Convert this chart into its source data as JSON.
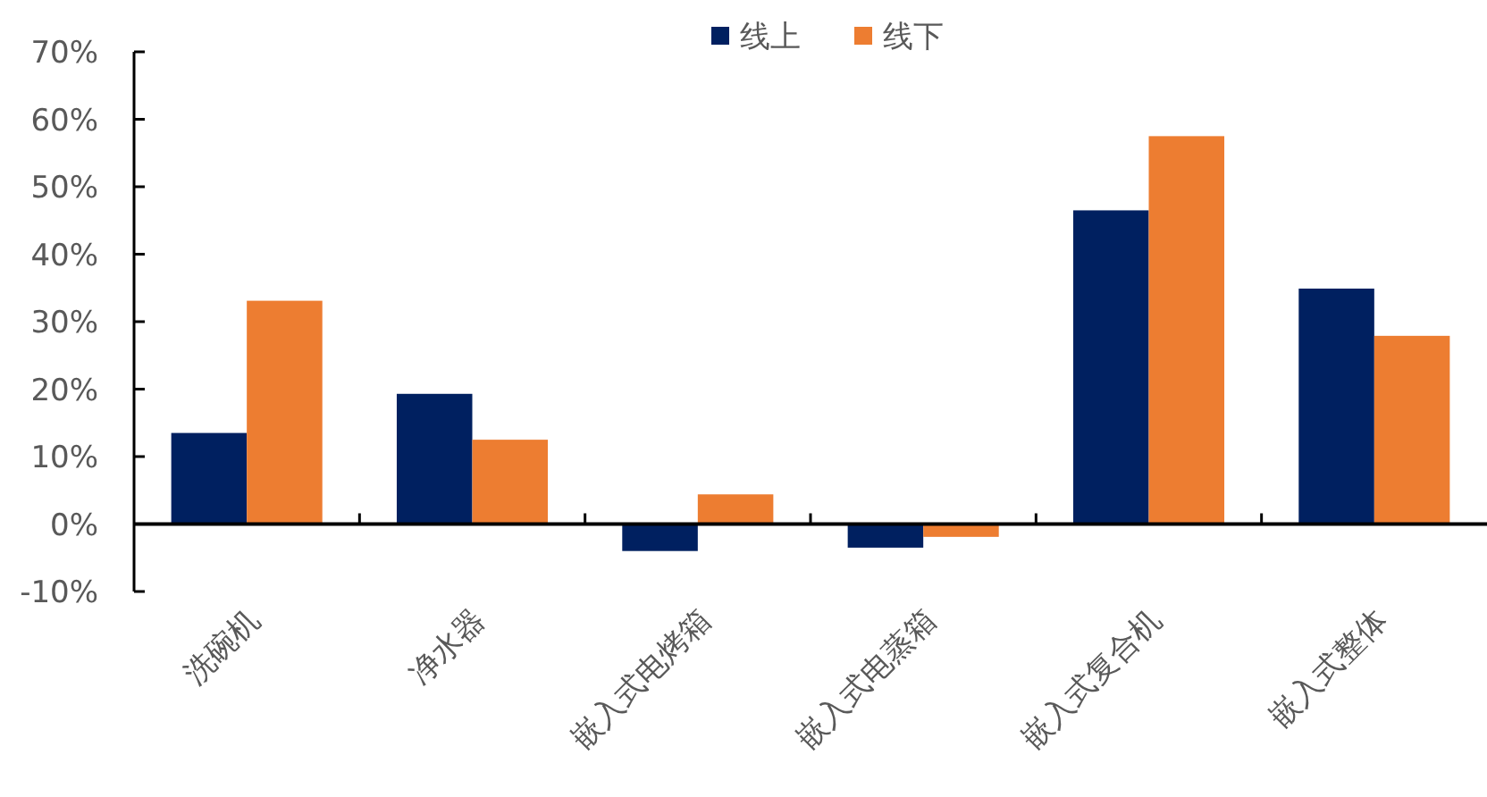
{
  "chart_data": {
    "type": "bar",
    "categories": [
      "洗碗机",
      "净水器",
      "嵌入式电烤箱",
      "嵌入式电蒸箱",
      "嵌入式复合机",
      "嵌入式整体"
    ],
    "series": [
      {
        "name": "线上",
        "color": "#002060",
        "values": [
          13.5,
          19.3,
          -4.0,
          -3.5,
          46.5,
          34.9
        ]
      },
      {
        "name": "线下",
        "color": "#ed7d31",
        "values": [
          33.1,
          12.5,
          4.4,
          -1.9,
          57.5,
          27.9
        ]
      }
    ],
    "ylim": [
      -10,
      70
    ],
    "yticks": [
      {
        "value": -10,
        "label": "-10%"
      },
      {
        "value": 0,
        "label": "0%"
      },
      {
        "value": 10,
        "label": "10%"
      },
      {
        "value": 20,
        "label": "20%"
      },
      {
        "value": 30,
        "label": "30%"
      },
      {
        "value": 40,
        "label": "40%"
      },
      {
        "value": 50,
        "label": "50%"
      },
      {
        "value": 60,
        "label": "60%"
      },
      {
        "value": 70,
        "label": "70%"
      }
    ],
    "grid": false,
    "legend": "top"
  }
}
